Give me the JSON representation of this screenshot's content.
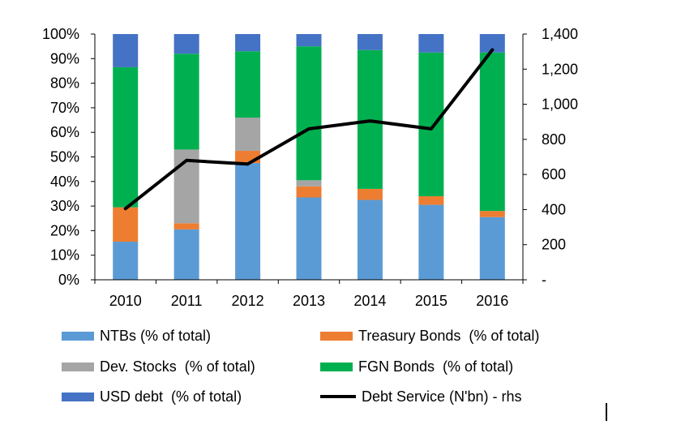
{
  "chart_data": {
    "type": "bar",
    "stacked": true,
    "categories": [
      "2010",
      "2011",
      "2012",
      "2013",
      "2014",
      "2015",
      "2016"
    ],
    "series": [
      {
        "name": "NTBs (% of total)",
        "color": "#5B9BD5",
        "values": [
          15.5,
          20.5,
          47.5,
          33.5,
          32.5,
          30.5,
          25.5
        ]
      },
      {
        "name": "Treasury Bonds  (% of total)",
        "color": "#ED7D31",
        "values": [
          14,
          2.5,
          5,
          4.5,
          4.5,
          3.5,
          2.5
        ]
      },
      {
        "name": "Dev. Stocks  (% of total)",
        "color": "#A5A5A5",
        "values": [
          0,
          30,
          13.5,
          2.5,
          0,
          0,
          0
        ]
      },
      {
        "name": "FGN Bonds  (% of total)",
        "color": "#00B050",
        "values": [
          57,
          39,
          27,
          54.5,
          56.5,
          58.5,
          64.5
        ]
      },
      {
        "name": "USD debt  (% of total)",
        "color": "#4472C4",
        "values": [
          13.5,
          8,
          7,
          5,
          6.5,
          7.5,
          7.5
        ]
      }
    ],
    "line_series": {
      "name": "Debt Service (N'bn) - rhs",
      "color": "#000000",
      "axis": "right",
      "values": [
        405,
        680,
        660,
        860,
        905,
        860,
        1310
      ]
    },
    "left_axis": {
      "min": 0,
      "max": 100,
      "ticks": [
        "0%",
        "10%",
        "20%",
        "30%",
        "40%",
        "50%",
        "60%",
        "70%",
        "80%",
        "90%",
        "100%"
      ]
    },
    "right_axis": {
      "min": 0,
      "max": 1400,
      "ticks": [
        "-",
        "200",
        "400",
        "600",
        "800",
        "1,000",
        "1,200",
        "1,400"
      ]
    },
    "grid": false,
    "legend_position": "bottom"
  }
}
